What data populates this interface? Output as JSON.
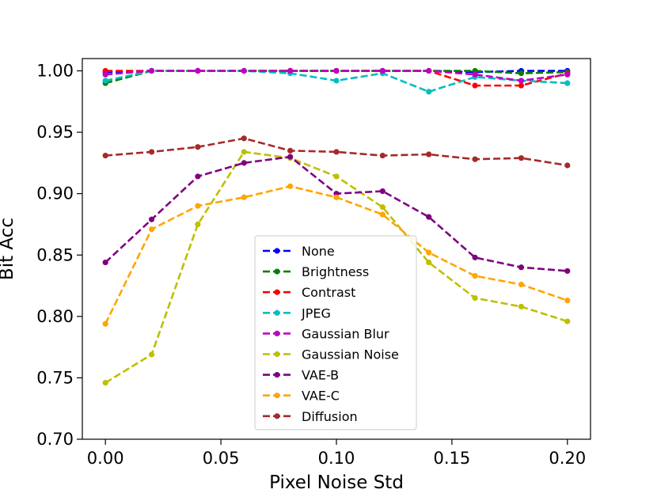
{
  "chart_data": {
    "type": "line",
    "title": "",
    "xlabel": "Pixel Noise Std",
    "ylabel": "Bit Acc",
    "xlim": [
      -0.01,
      0.21
    ],
    "ylim": [
      0.7,
      1.01
    ],
    "grid": false,
    "legend_position": "lower-center",
    "x_ticks": [
      0.0,
      0.05,
      0.1,
      0.15,
      0.2
    ],
    "x_tick_labels": [
      "0.00",
      "0.05",
      "0.10",
      "0.15",
      "0.20"
    ],
    "y_ticks": [
      0.7,
      0.75,
      0.8,
      0.85,
      0.9,
      0.95,
      1.0
    ],
    "y_tick_labels": [
      "0.70",
      "0.75",
      "0.80",
      "0.85",
      "0.90",
      "0.95",
      "1.00"
    ],
    "x": [
      0.0,
      0.02,
      0.04,
      0.06,
      0.08,
      0.1,
      0.12,
      0.14,
      0.16,
      0.18,
      0.2
    ],
    "series": [
      {
        "name": "None",
        "color": "#0000ff",
        "values": [
          0.999,
          1.0,
          1.0,
          1.0,
          1.0,
          1.0,
          1.0,
          1.0,
          0.999,
          1.0,
          1.0
        ]
      },
      {
        "name": "Brightness",
        "color": "#008000",
        "values": [
          0.99,
          1.0,
          1.0,
          1.0,
          1.0,
          1.0,
          1.0,
          1.0,
          1.0,
          0.998,
          0.999
        ]
      },
      {
        "name": "Contrast",
        "color": "#ff0000",
        "values": [
          1.0,
          1.0,
          1.0,
          1.0,
          1.0,
          1.0,
          1.0,
          1.0,
          0.988,
          0.988,
          0.998
        ]
      },
      {
        "name": "JPEG",
        "color": "#00bfbf",
        "values": [
          0.992,
          1.0,
          1.0,
          1.0,
          0.998,
          0.992,
          0.998,
          0.983,
          0.995,
          0.992,
          0.99
        ]
      },
      {
        "name": "Gaussian Blur",
        "color": "#bf00bf",
        "values": [
          0.997,
          1.0,
          1.0,
          1.0,
          1.0,
          1.0,
          1.0,
          1.0,
          0.997,
          0.992,
          0.997
        ]
      },
      {
        "name": "Gaussian Noise",
        "color": "#bfbf00",
        "values": [
          0.746,
          0.769,
          0.875,
          0.934,
          0.929,
          0.914,
          0.889,
          0.844,
          0.815,
          0.808,
          0.796
        ]
      },
      {
        "name": "VAE-B",
        "color": "#800080",
        "values": [
          0.844,
          0.879,
          0.914,
          0.925,
          0.93,
          0.9,
          0.902,
          0.881,
          0.848,
          0.84,
          0.837
        ]
      },
      {
        "name": "VAE-C",
        "color": "#ffa500",
        "values": [
          0.794,
          0.871,
          0.89,
          0.897,
          0.906,
          0.897,
          0.883,
          0.852,
          0.833,
          0.826,
          0.813
        ]
      },
      {
        "name": "Diffusion",
        "color": "#a52a2a",
        "values": [
          0.931,
          0.934,
          0.938,
          0.945,
          0.935,
          0.934,
          0.931,
          0.932,
          0.928,
          0.929,
          0.923
        ]
      }
    ]
  }
}
